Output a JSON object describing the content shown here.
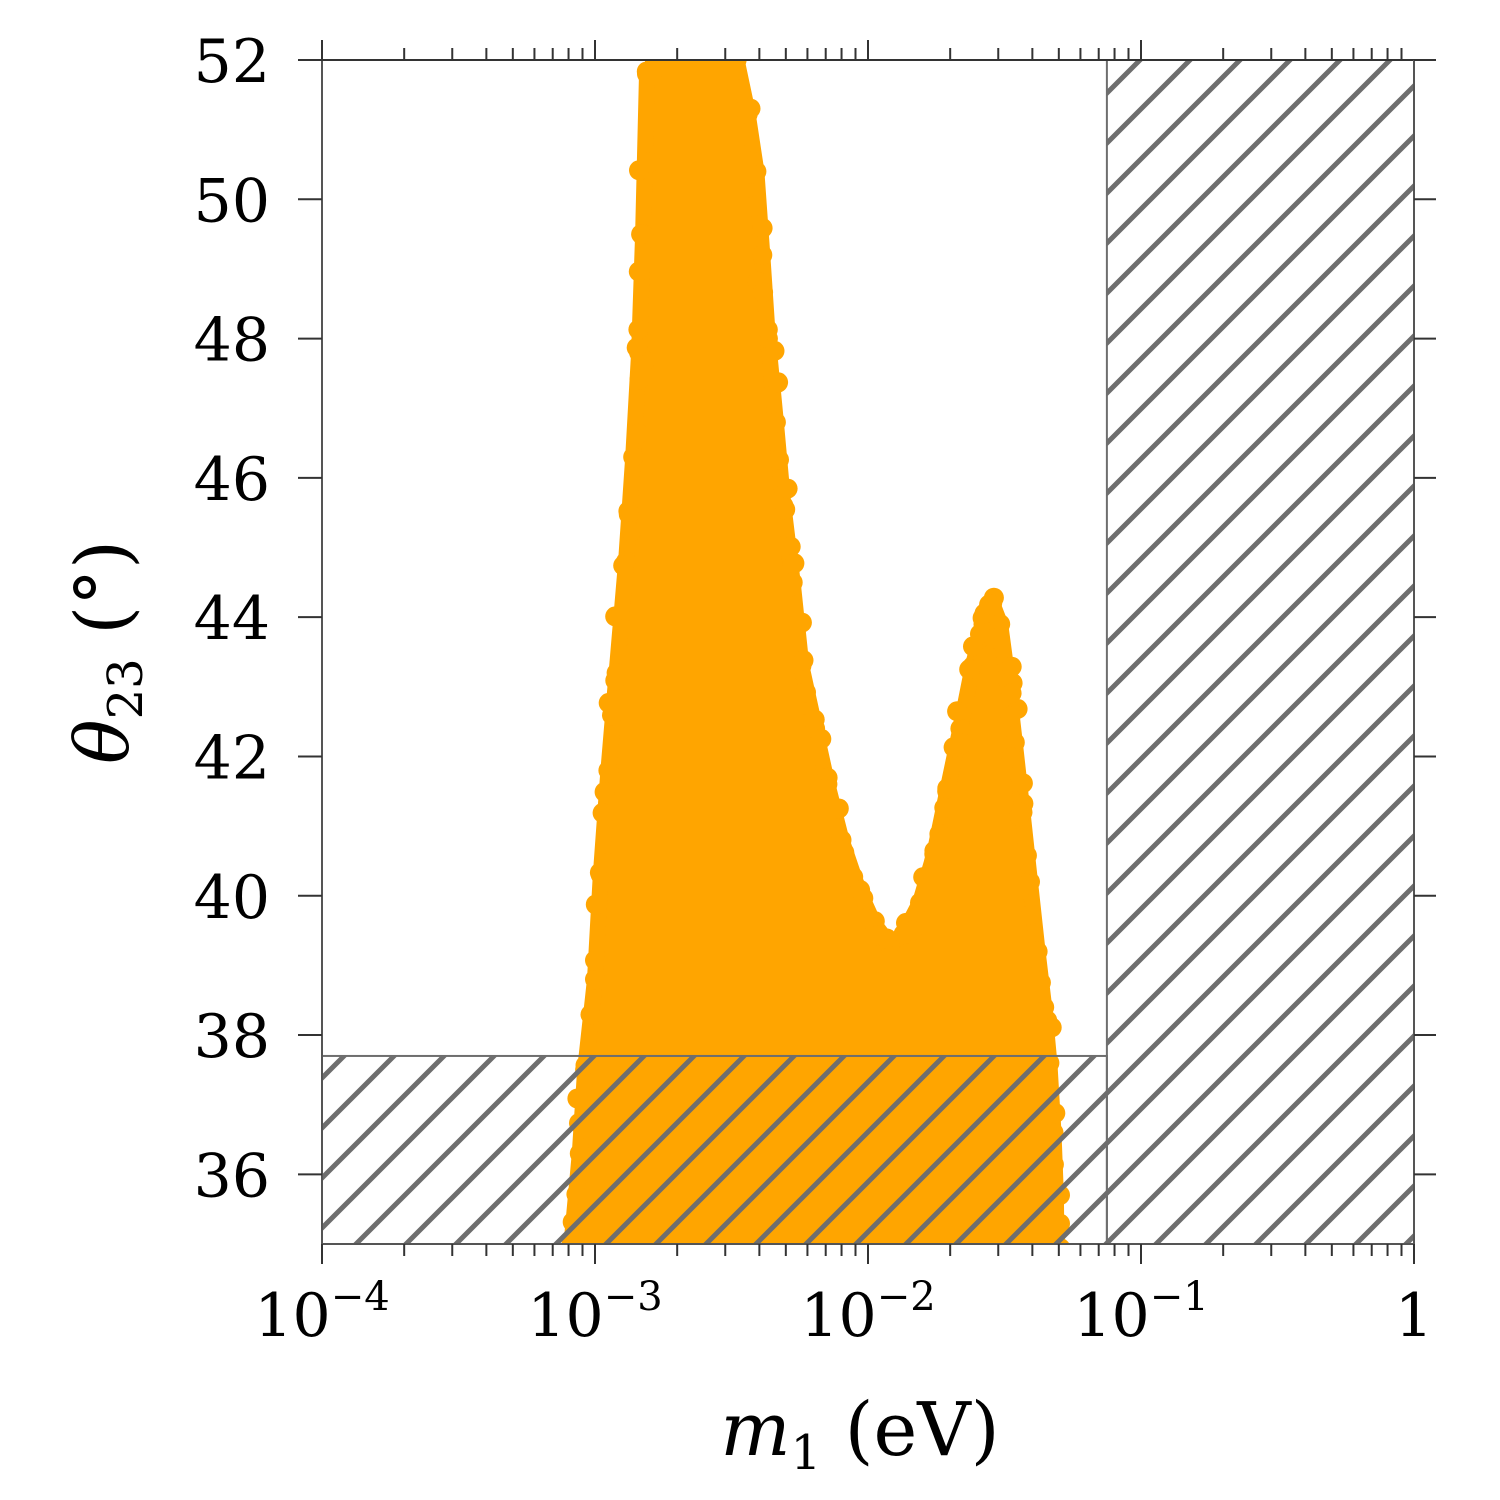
{
  "chart_data": {
    "type": "scatter",
    "title": "",
    "xlabel": "m1 (eV)",
    "ylabel": "θ23 (°)",
    "x_scale": "log",
    "xlim": [
      0.0001,
      1
    ],
    "ylim": [
      35,
      52
    ],
    "x_ticks": [
      {
        "value": 0.0001,
        "base": "10",
        "exp": "−4"
      },
      {
        "value": 0.001,
        "base": "10",
        "exp": "−3"
      },
      {
        "value": 0.01,
        "base": "10",
        "exp": "−2"
      },
      {
        "value": 0.1,
        "base": "10",
        "exp": "−1"
      },
      {
        "value": 1,
        "base": "1",
        "exp": ""
      }
    ],
    "y_ticks": [
      36,
      38,
      40,
      42,
      44,
      46,
      48,
      50,
      52
    ],
    "grid": false,
    "point_color": "#FFA500",
    "hatch_color": "#6e6e6e",
    "excluded_regions": [
      {
        "x_min": 0.075,
        "x_max": 1,
        "y_min": 35,
        "y_max": 52
      },
      {
        "x_min": 0.0001,
        "x_max": 0.075,
        "y_min": 35,
        "y_max": 37.7
      }
    ],
    "allowed_region_outline": [
      [
        0.00082,
        35
      ],
      [
        0.00088,
        36.3
      ],
      [
        0.00092,
        37.5
      ],
      [
        0.001,
        38.8
      ],
      [
        0.00105,
        40.3
      ],
      [
        0.00112,
        41.8
      ],
      [
        0.0012,
        43.2
      ],
      [
        0.0013,
        44.8
      ],
      [
        0.00138,
        46.3
      ],
      [
        0.00145,
        47.8
      ],
      [
        0.0015,
        49.5
      ],
      [
        0.00155,
        51.8
      ],
      [
        0.0017,
        52
      ],
      [
        0.0025,
        52
      ],
      [
        0.0033,
        52
      ],
      [
        0.0036,
        51.3
      ],
      [
        0.0039,
        50.4
      ],
      [
        0.0041,
        49.2
      ],
      [
        0.0043,
        48
      ],
      [
        0.0046,
        46.8
      ],
      [
        0.0049,
        45.6
      ],
      [
        0.0053,
        44.5
      ],
      [
        0.0057,
        43.3
      ],
      [
        0.0064,
        42.4
      ],
      [
        0.0071,
        41.6
      ],
      [
        0.008,
        40.8
      ],
      [
        0.0092,
        40.1
      ],
      [
        0.0105,
        39.6
      ],
      [
        0.012,
        39.3
      ],
      [
        0.0135,
        39.45
      ],
      [
        0.0155,
        39.9
      ],
      [
        0.0175,
        40.6
      ],
      [
        0.0195,
        41.5
      ],
      [
        0.0218,
        42.4
      ],
      [
        0.0242,
        43.3
      ],
      [
        0.0265,
        43.9
      ],
      [
        0.0285,
        44.2
      ],
      [
        0.0305,
        43.9
      ],
      [
        0.0325,
        43.1
      ],
      [
        0.0345,
        42.2
      ],
      [
        0.0368,
        41.2
      ],
      [
        0.0392,
        40.2
      ],
      [
        0.0418,
        39.2
      ],
      [
        0.0442,
        38.4
      ],
      [
        0.0462,
        37.6
      ],
      [
        0.0478,
        36.6
      ],
      [
        0.0488,
        35.7
      ],
      [
        0.049,
        35
      ]
    ]
  }
}
